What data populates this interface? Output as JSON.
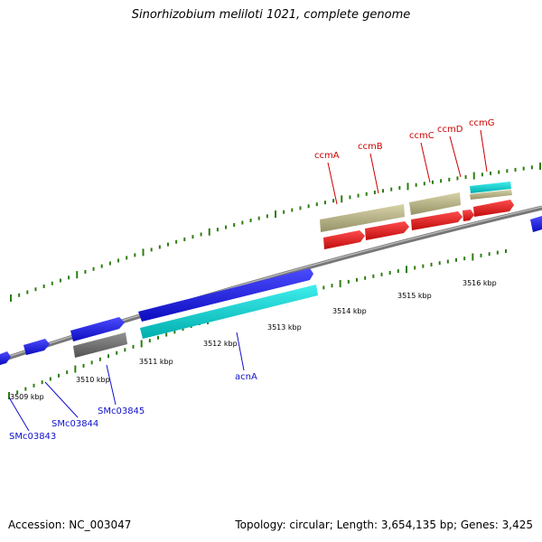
{
  "title": "Sinorhizobium meliloti 1021, complete genome",
  "footer": {
    "accession": "Accession: NC_003047",
    "summary": "Topology: circular; Length: 3,654,135 bp; Genes: 3,425"
  },
  "colors": {
    "background": "#ffffff",
    "backbone": "#808080",
    "tick": "#2e7d12",
    "cds_blue": "#1010ff",
    "cds_cyan": "#00e8e8",
    "gene_red": "#ff1010",
    "gene_khaki": "#c9c38a",
    "gene_gray": "#6e6e6e",
    "label_red": "#cc0000",
    "label_blue": "#1010cc"
  },
  "map": {
    "scale_labels": [
      "3509 kbp",
      "3510 kbp",
      "3511 kbp",
      "3512 kbp",
      "3513 kbp",
      "3514 kbp",
      "3515 kbp",
      "3516 kbp"
    ],
    "features": [
      {
        "track": "blue",
        "strand": "forward",
        "label": ""
      },
      {
        "track": "blue",
        "strand": "forward",
        "label": ""
      },
      {
        "track": "blue",
        "strand": "forward",
        "label": ""
      },
      {
        "track": "blue",
        "strand": "forward",
        "label": ""
      },
      {
        "track": "blue",
        "strand": "forward",
        "label": ""
      },
      {
        "track": "cyan",
        "strand": "none",
        "label": ""
      },
      {
        "track": "cyan",
        "strand": "none",
        "label": ""
      },
      {
        "track": "gray",
        "strand": "none",
        "label": ""
      },
      {
        "track": "khaki",
        "strand": "none",
        "label": ""
      },
      {
        "track": "khaki",
        "strand": "none",
        "label": ""
      },
      {
        "track": "khaki",
        "strand": "none",
        "label": ""
      },
      {
        "track": "red",
        "strand": "forward",
        "label": ""
      },
      {
        "track": "red",
        "strand": "forward",
        "label": ""
      },
      {
        "track": "red",
        "strand": "forward",
        "label": ""
      },
      {
        "track": "red",
        "strand": "forward",
        "label": ""
      },
      {
        "track": "red",
        "strand": "forward",
        "label": ""
      }
    ],
    "labels": [
      {
        "text": "ccmA",
        "color": "red"
      },
      {
        "text": "ccmB",
        "color": "red"
      },
      {
        "text": "ccmC",
        "color": "red"
      },
      {
        "text": "ccmD",
        "color": "red"
      },
      {
        "text": "ccmG",
        "color": "red"
      },
      {
        "text": "acnA",
        "color": "blue"
      },
      {
        "text": "SMc03843",
        "color": "blue"
      },
      {
        "text": "SMc03844",
        "color": "blue"
      },
      {
        "text": "SMc03845",
        "color": "blue"
      }
    ]
  }
}
